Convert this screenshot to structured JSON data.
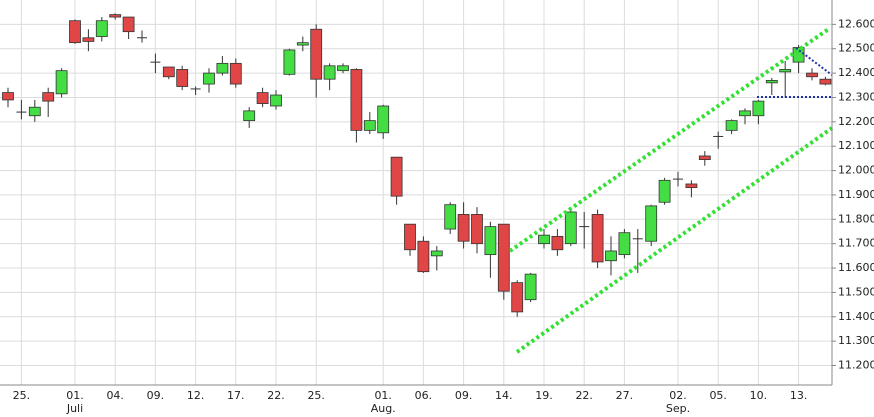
{
  "chart_data": {
    "type": "candlestick",
    "categories": [
      null,
      "25.",
      null,
      null,
      null,
      "01.",
      null,
      null,
      "04.",
      null,
      null,
      "09.",
      null,
      null,
      "12.",
      null,
      null,
      "17.",
      null,
      null,
      "22.",
      null,
      null,
      "25.",
      null,
      null,
      null,
      null,
      "01.",
      null,
      null,
      "06.",
      null,
      null,
      "09.",
      null,
      null,
      "14.",
      null,
      null,
      "19.",
      null,
      null,
      "22.",
      null,
      null,
      "27.",
      null,
      null,
      null,
      "02.",
      null,
      null,
      "05.",
      null,
      null,
      "10.",
      null,
      null,
      "13.",
      null,
      null
    ],
    "month_labels": [
      {
        "category": 5,
        "label": "Juli"
      },
      {
        "category": 28,
        "label": "Aug."
      },
      {
        "category": 50,
        "label": "Sep."
      }
    ],
    "open": [
      12320,
      12240,
      12225,
      12320,
      12315,
      12615,
      12545,
      12550,
      12640,
      12630,
      12545,
      12445,
      12425,
      12415,
      12335,
      12355,
      12400,
      12440,
      12205,
      12320,
      12265,
      12395,
      12515,
      12580,
      12375,
      12410,
      12415,
      12165,
      12155,
      12055,
      11780,
      11710,
      11650,
      11760,
      11820,
      11820,
      11655,
      11780,
      11540,
      11470,
      11700,
      11730,
      11700,
      11770,
      11820,
      11630,
      11655,
      11720,
      11710,
      11870,
      11965,
      11945,
      12060,
      12140,
      12165,
      12225,
      12225,
      12360,
      12405,
      12445,
      12400,
      12375
    ],
    "high": [
      12340,
      12290,
      12290,
      12340,
      12420,
      12620,
      12580,
      12630,
      12645,
      12630,
      12575,
      12480,
      12425,
      12430,
      12345,
      12420,
      12470,
      12460,
      12260,
      12340,
      12330,
      12500,
      12550,
      12600,
      12440,
      12440,
      12420,
      12240,
      12270,
      12055,
      11780,
      11730,
      11690,
      11870,
      11870,
      11850,
      11790,
      11780,
      11550,
      11580,
      11760,
      11760,
      11840,
      11830,
      11840,
      11730,
      11760,
      11760,
      11860,
      11970,
      11995,
      11960,
      12080,
      12160,
      12210,
      12255,
      12290,
      12380,
      12450,
      12515,
      12420,
      12385
    ],
    "low": [
      12260,
      12210,
      12200,
      12220,
      12300,
      12520,
      12490,
      12530,
      12620,
      12540,
      12525,
      12400,
      12375,
      12330,
      12310,
      12320,
      12390,
      12340,
      12175,
      12260,
      12250,
      12390,
      12490,
      12300,
      12330,
      12400,
      12115,
      12150,
      12130,
      11860,
      11650,
      11580,
      11590,
      11740,
      11680,
      11660,
      11560,
      11470,
      11400,
      11460,
      11680,
      11650,
      11690,
      11680,
      11600,
      11570,
      11640,
      11580,
      11690,
      11860,
      11935,
      11890,
      12020,
      12090,
      12150,
      12190,
      12190,
      12310,
      12300,
      12400,
      12370,
      12350
    ],
    "close": [
      12290,
      12240,
      12260,
      12285,
      12410,
      12525,
      12530,
      12615,
      12630,
      12570,
      12545,
      12445,
      12385,
      12345,
      12335,
      12400,
      12440,
      12355,
      12245,
      12275,
      12310,
      12495,
      12525,
      12375,
      12430,
      12430,
      12165,
      12205,
      12265,
      11895,
      11675,
      11585,
      11670,
      11860,
      11710,
      11700,
      11770,
      11505,
      11420,
      11575,
      11735,
      11675,
      11830,
      11770,
      11625,
      11670,
      11745,
      11720,
      11855,
      11960,
      11965,
      11930,
      12045,
      12140,
      12205,
      12245,
      12285,
      12370,
      12415,
      12505,
      12385,
      12355
    ],
    "up_color": "#44dd44",
    "down_color": "#e04646",
    "ylim": [
      11120,
      12700
    ],
    "yticks": [
      {
        "value": 11200,
        "label": "11.200"
      },
      {
        "value": 11300,
        "label": "11.300"
      },
      {
        "value": 11400,
        "label": "11.400"
      },
      {
        "value": 11500,
        "label": "11.500"
      },
      {
        "value": 11600,
        "label": "11.600"
      },
      {
        "value": 11700,
        "label": "11.700"
      },
      {
        "value": 11800,
        "label": "11.800"
      },
      {
        "value": 11900,
        "label": "11.900"
      },
      {
        "value": 12000,
        "label": "12.000"
      },
      {
        "value": 12100,
        "label": "12.100"
      },
      {
        "value": 12200,
        "label": "12.200"
      },
      {
        "value": 12300,
        "label": "12.300"
      },
      {
        "value": 12400,
        "label": "12.400"
      },
      {
        "value": 12500,
        "label": "12.500"
      },
      {
        "value": 12600,
        "label": "12.600"
      }
    ],
    "grid": true
  }
}
